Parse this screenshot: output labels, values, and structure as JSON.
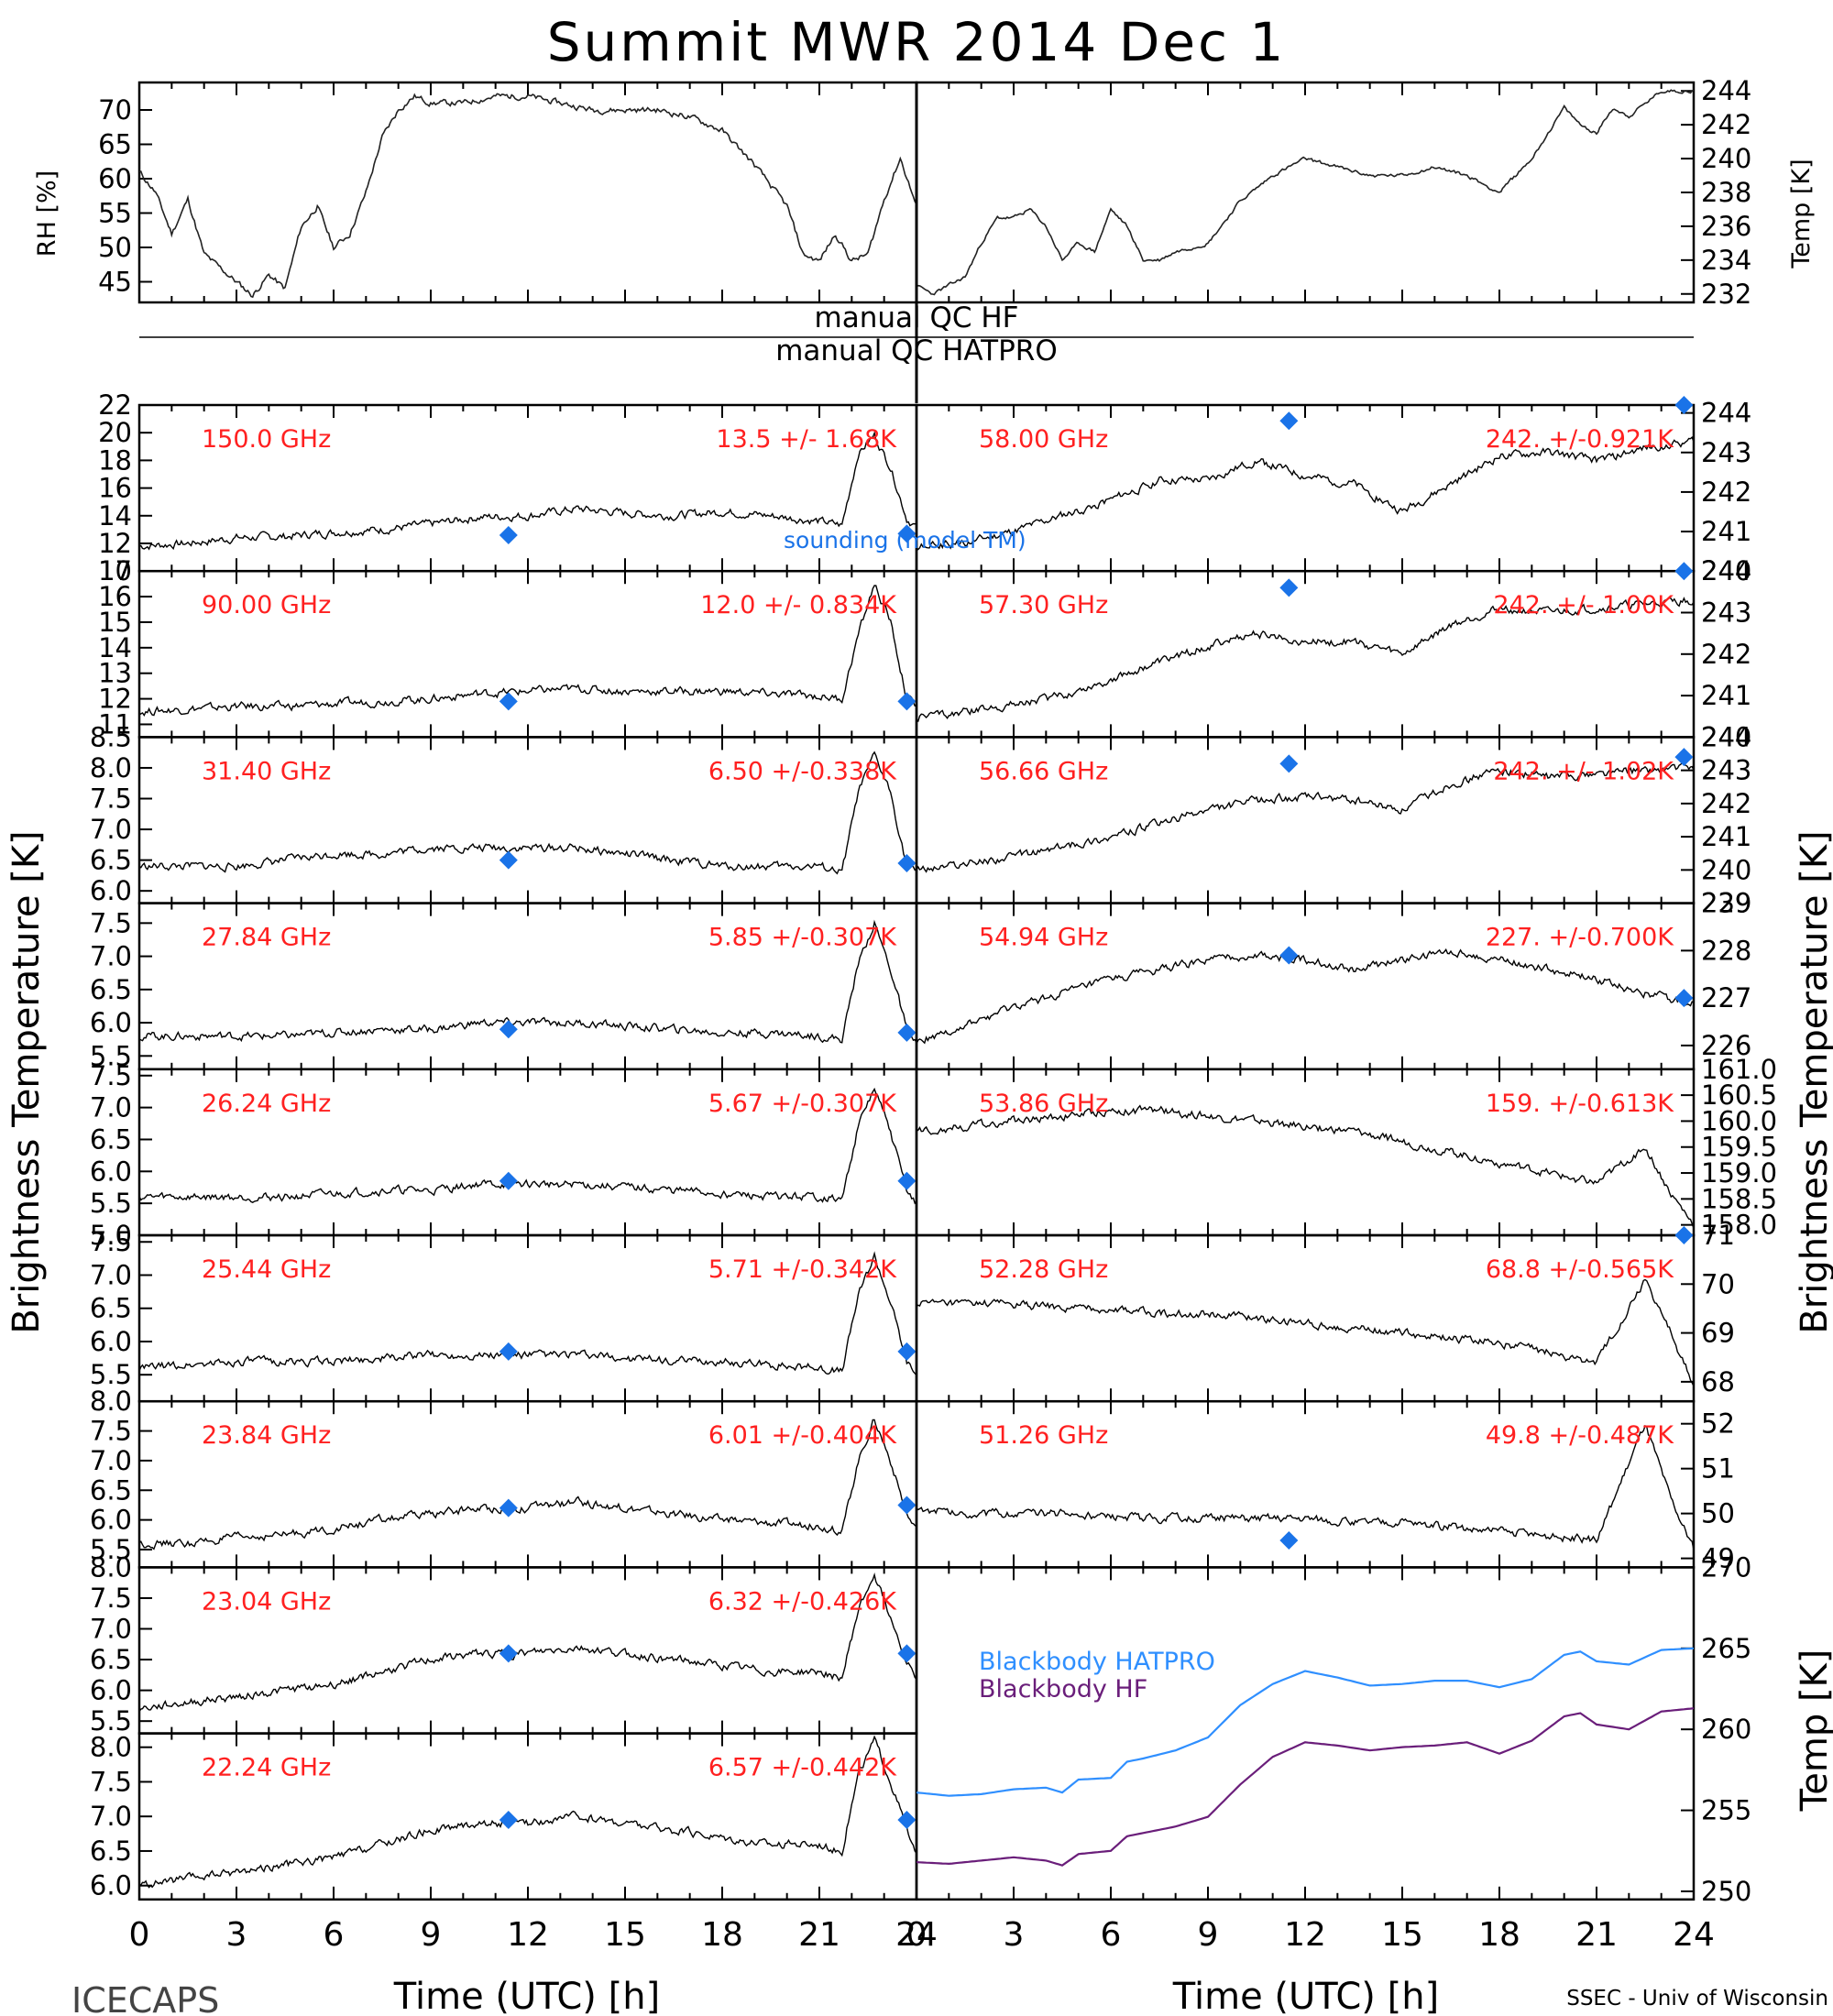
{
  "figure": {
    "title": "Summit MWR 2014 Dec  1",
    "footer_left": "ICECAPS",
    "footer_right": "SSEC - Univ of Wisconsin",
    "left_ylabel": "Brightness Temperature [K]",
    "right_ylabel": "Brightness Temperature [K]",
    "bb_ylabel": "Temp [K]",
    "rh_ylabel": "RH [%]",
    "temp_ylabel": "Temp [K]",
    "xlabel": "Time (UTC) [h]",
    "qc_hf": "manual QC HF",
    "qc_hatpro": "manual QC HATPRO",
    "sounding_label": "sounding (model TM)",
    "legend_hatpro": "Blackbody HATPRO",
    "legend_hf": "Blackbody HF",
    "colors": {
      "channel_label": "#ff2020",
      "sounding": "#1a73e8",
      "hatpro": "#2f8fff",
      "hf": "#6a1e7a",
      "data": "#000000"
    }
  },
  "chart_data": [
    {
      "type": "line",
      "name": "rh",
      "ylabel": "RH [%]",
      "xlim": [
        0,
        24
      ],
      "ylim": [
        42,
        74
      ],
      "yticks": [
        45,
        50,
        55,
        60,
        65,
        70
      ],
      "x": [
        0,
        0.5,
        1,
        1.5,
        2,
        2.5,
        3,
        3.5,
        4,
        4.5,
        5,
        5.5,
        6,
        6.5,
        7,
        7.5,
        8,
        8.5,
        9,
        10,
        11,
        12,
        13,
        14,
        15,
        16,
        17,
        18,
        19,
        20,
        20.5,
        21,
        21.5,
        22,
        22.5,
        23,
        23.5,
        24
      ],
      "y": [
        61,
        58,
        52,
        57,
        49,
        47,
        45,
        43,
        46,
        44,
        53,
        56,
        50,
        52,
        58,
        66,
        70,
        72,
        71,
        71,
        72,
        72,
        71,
        70,
        70,
        70,
        69,
        67,
        62,
        56,
        49,
        48,
        52,
        48,
        49,
        57,
        63,
        56
      ]
    },
    {
      "type": "line",
      "name": "temp",
      "ylabel": "Temp [K]",
      "xlim": [
        0,
        24
      ],
      "ylim": [
        231.5,
        244.5
      ],
      "yticks": [
        232,
        234,
        236,
        238,
        240,
        242,
        244
      ],
      "x": [
        0,
        0.5,
        1,
        1.5,
        2,
        2.5,
        3,
        3.5,
        4,
        4.5,
        5,
        5.5,
        6,
        6.5,
        7,
        7.5,
        8,
        9,
        10,
        11,
        12,
        13,
        14,
        15,
        16,
        17,
        18,
        19,
        20,
        20.5,
        21,
        21.5,
        22,
        23,
        24
      ],
      "y": [
        232.5,
        232,
        232.5,
        233,
        235,
        236.5,
        236.5,
        237,
        236,
        234,
        235,
        234.5,
        237,
        236,
        234,
        234,
        234.5,
        235,
        237.5,
        239,
        240,
        239.5,
        239,
        239,
        239.5,
        239,
        238,
        240,
        243,
        242,
        241.5,
        243,
        242.5,
        244,
        244
      ]
    },
    {
      "type": "line",
      "name": "150.0 GHz",
      "ylim": [
        10,
        22
      ],
      "yticks": [
        10,
        12,
        14,
        16,
        18,
        20,
        22
      ],
      "stat": "13.5 +/-  1.68K",
      "x": [
        0,
        1.5,
        3,
        4.5,
        6,
        7.5,
        9,
        10.5,
        12,
        13.5,
        15,
        16.5,
        18,
        19.5,
        21,
        21.7,
        22.2,
        22.7,
        23.2,
        23.7,
        24
      ],
      "y": [
        11.8,
        12.0,
        12.4,
        12.5,
        12.8,
        13.0,
        13.4,
        13.9,
        14.0,
        14.5,
        14.2,
        14.0,
        14.3,
        14.0,
        13.6,
        13.3,
        18.5,
        19.8,
        17.5,
        13.8,
        13.2
      ],
      "sounding": [
        [
          11.4,
          12.6
        ],
        [
          23.7,
          12.7
        ]
      ]
    },
    {
      "type": "line",
      "name": "90.00 GHz",
      "ylim": [
        10.5,
        17
      ],
      "yticks": [
        11,
        12,
        13,
        14,
        15,
        16,
        17
      ],
      "stat": "12.0 +/- 0.834K",
      "x": [
        0,
        1.5,
        3,
        4.5,
        6,
        7.5,
        9,
        10.5,
        12,
        13.5,
        15,
        16.5,
        18,
        19.5,
        21,
        21.7,
        22.2,
        22.7,
        23.2,
        23.7,
        24
      ],
      "y": [
        11.5,
        11.6,
        11.7,
        11.7,
        11.8,
        11.9,
        12.0,
        12.2,
        12.3,
        12.4,
        12.3,
        12.3,
        12.3,
        12.2,
        12.1,
        12.0,
        14.5,
        16.5,
        15.0,
        12.0,
        11.8
      ],
      "sounding": [
        [
          11.4,
          11.9
        ],
        [
          23.7,
          11.9
        ]
      ]
    },
    {
      "type": "line",
      "name": "31.40 GHz",
      "ylim": [
        5.8,
        8.5
      ],
      "yticks": [
        6.0,
        6.5,
        7.0,
        7.5,
        8.0,
        8.5
      ],
      "stat": "6.50 +/-0.338K",
      "x": [
        0,
        1.5,
        3,
        4.5,
        6,
        7.5,
        9,
        10.5,
        12,
        13.5,
        15,
        16.5,
        18,
        19.5,
        21,
        21.7,
        22.2,
        22.7,
        23.2,
        23.7,
        24
      ],
      "y": [
        6.4,
        6.4,
        6.4,
        6.5,
        6.6,
        6.6,
        6.7,
        6.7,
        6.7,
        6.7,
        6.6,
        6.5,
        6.4,
        6.4,
        6.4,
        6.3,
        7.6,
        8.2,
        7.6,
        6.4,
        6.3
      ],
      "sounding": [
        [
          11.4,
          6.5
        ],
        [
          23.7,
          6.45
        ]
      ]
    },
    {
      "type": "line",
      "name": "27.84 GHz",
      "ylim": [
        5.3,
        7.8
      ],
      "yticks": [
        5.5,
        6.0,
        6.5,
        7.0,
        7.5
      ],
      "stat": "5.85 +/-0.307K",
      "x": [
        0,
        1.5,
        3,
        4.5,
        6,
        7.5,
        9,
        10.5,
        12,
        13.5,
        15,
        16.5,
        18,
        19.5,
        21,
        21.7,
        22.2,
        22.7,
        23.2,
        23.7,
        24
      ],
      "y": [
        5.8,
        5.8,
        5.8,
        5.8,
        5.85,
        5.9,
        5.9,
        6.0,
        6.0,
        6.0,
        5.95,
        5.9,
        5.85,
        5.85,
        5.8,
        5.75,
        6.9,
        7.5,
        6.8,
        5.9,
        5.7
      ],
      "sounding": [
        [
          11.4,
          5.9
        ],
        [
          23.7,
          5.85
        ]
      ]
    },
    {
      "type": "line",
      "name": "26.24 GHz",
      "ylim": [
        5.0,
        7.6
      ],
      "yticks": [
        5.0,
        5.5,
        6.0,
        6.5,
        7.0,
        7.5
      ],
      "stat": "5.67 +/-0.307K",
      "x": [
        0,
        1.5,
        3,
        4.5,
        6,
        7.5,
        9,
        10.5,
        12,
        13.5,
        15,
        16.5,
        18,
        19.5,
        21,
        21.7,
        22.2,
        22.7,
        23.2,
        23.7,
        24
      ],
      "y": [
        5.6,
        5.6,
        5.6,
        5.6,
        5.65,
        5.7,
        5.7,
        5.8,
        5.8,
        5.8,
        5.75,
        5.7,
        5.65,
        5.6,
        5.6,
        5.55,
        6.7,
        7.3,
        6.6,
        5.7,
        5.5
      ],
      "sounding": [
        [
          11.4,
          5.85
        ],
        [
          23.7,
          5.85
        ]
      ]
    },
    {
      "type": "line",
      "name": "25.44 GHz",
      "ylim": [
        5.1,
        7.6
      ],
      "yticks": [
        5.5,
        6.0,
        6.5,
        7.0,
        7.5
      ],
      "stat": "5.71 +/-0.342K",
      "x": [
        0,
        1.5,
        3,
        4.5,
        6,
        7.5,
        9,
        10.5,
        12,
        13.5,
        15,
        16.5,
        18,
        19.5,
        21,
        21.7,
        22.2,
        22.7,
        23.2,
        23.7,
        24
      ],
      "y": [
        5.6,
        5.65,
        5.7,
        5.7,
        5.7,
        5.75,
        5.8,
        5.8,
        5.8,
        5.8,
        5.75,
        5.7,
        5.7,
        5.65,
        5.6,
        5.55,
        6.7,
        7.3,
        6.6,
        5.7,
        5.5
      ],
      "sounding": [
        [
          11.4,
          5.85
        ],
        [
          23.7,
          5.85
        ]
      ]
    },
    {
      "type": "line",
      "name": "23.84 GHz",
      "ylim": [
        5.2,
        8.0
      ],
      "yticks": [
        5.5,
        6.0,
        6.5,
        7.0,
        7.5,
        8.0
      ],
      "stat": "6.01 +/-0.404K",
      "x": [
        0,
        1.5,
        3,
        4.5,
        6,
        7.5,
        9,
        10.5,
        12,
        13.5,
        15,
        16.5,
        18,
        19.5,
        21,
        21.7,
        22.2,
        22.7,
        23.2,
        23.7,
        24
      ],
      "y": [
        5.6,
        5.6,
        5.7,
        5.75,
        5.85,
        6.0,
        6.1,
        6.2,
        6.2,
        6.3,
        6.2,
        6.1,
        6.0,
        5.95,
        5.9,
        5.8,
        7.0,
        7.7,
        7.0,
        6.1,
        5.8
      ],
      "sounding": [
        [
          11.4,
          6.2
        ],
        [
          23.7,
          6.25
        ]
      ]
    },
    {
      "type": "line",
      "name": "23.04 GHz",
      "ylim": [
        5.3,
        8.0
      ],
      "yticks": [
        5.5,
        6.0,
        6.5,
        7.0,
        7.5,
        8.0
      ],
      "stat": "6.32 +/-0.426K",
      "x": [
        0,
        1.5,
        3,
        4.5,
        6,
        7.5,
        9,
        10.5,
        12,
        13.5,
        15,
        16.5,
        18,
        19.5,
        21,
        21.7,
        22.2,
        22.7,
        23.2,
        23.7,
        24
      ],
      "y": [
        5.7,
        5.8,
        5.9,
        6.0,
        6.1,
        6.3,
        6.5,
        6.6,
        6.6,
        6.7,
        6.6,
        6.5,
        6.4,
        6.3,
        6.3,
        6.2,
        7.3,
        7.9,
        7.2,
        6.5,
        6.2
      ],
      "sounding": [
        [
          11.4,
          6.6
        ],
        [
          23.7,
          6.6
        ]
      ]
    },
    {
      "type": "line",
      "name": "22.24 GHz",
      "ylim": [
        5.8,
        8.2
      ],
      "yticks": [
        6.0,
        6.5,
        7.0,
        7.5,
        8.0
      ],
      "stat": "6.57 +/-0.442K",
      "x": [
        0,
        1.5,
        3,
        4.5,
        6,
        7.5,
        9,
        10.5,
        12,
        13.5,
        15,
        16.5,
        18,
        19.5,
        21,
        21.7,
        22.2,
        22.7,
        23.2,
        23.7,
        24
      ],
      "y": [
        6.0,
        6.1,
        6.2,
        6.3,
        6.4,
        6.6,
        6.8,
        6.9,
        6.9,
        7.0,
        6.9,
        6.8,
        6.7,
        6.6,
        6.6,
        6.5,
        7.6,
        8.1,
        7.5,
        6.8,
        6.4
      ],
      "sounding": [
        [
          11.4,
          6.95
        ],
        [
          23.7,
          6.95
        ]
      ]
    },
    {
      "type": "line",
      "name": "58.00 GHz",
      "ylim": [
        240,
        244.2
      ],
      "yticks": [
        240,
        241,
        242,
        243,
        244
      ],
      "stat": "242. +/-0.921K",
      "x": [
        0,
        1.5,
        3,
        4.5,
        6,
        7.5,
        9,
        10.5,
        12,
        13.5,
        15,
        16.5,
        18,
        19.5,
        21,
        22.5,
        24
      ],
      "y": [
        240.6,
        240.7,
        241.0,
        241.4,
        241.8,
        242.3,
        242.3,
        242.8,
        242.4,
        242.2,
        241.5,
        242.2,
        242.9,
        243.0,
        242.8,
        243.1,
        243.3
      ],
      "sounding": [
        [
          11.5,
          243.8
        ],
        [
          23.7,
          244.2
        ]
      ]
    },
    {
      "type": "line",
      "name": "57.30 GHz",
      "ylim": [
        240,
        244
      ],
      "yticks": [
        240,
        241,
        242,
        243,
        244
      ],
      "stat": "242. +/- 1.00K",
      "x": [
        0,
        1.5,
        3,
        4.5,
        6,
        7.5,
        9,
        10.5,
        12,
        13.5,
        15,
        16.5,
        18,
        19.5,
        21,
        22.5,
        24
      ],
      "y": [
        240.5,
        240.6,
        240.8,
        241.0,
        241.4,
        241.8,
        242.2,
        242.5,
        242.3,
        242.3,
        242.0,
        242.7,
        243.1,
        243.0,
        243.1,
        243.2,
        243.3
      ],
      "sounding": [
        [
          11.5,
          243.6
        ],
        [
          23.7,
          244.0
        ]
      ]
    },
    {
      "type": "line",
      "name": "56.66 GHz",
      "ylim": [
        239,
        244
      ],
      "yticks": [
        239,
        240,
        241,
        242,
        243,
        244
      ],
      "stat": "242. +/- 1.02K",
      "x": [
        0,
        1.5,
        3,
        4.5,
        6,
        7.5,
        9,
        10.5,
        12,
        13.5,
        15,
        16.5,
        18,
        19.5,
        21,
        22.5,
        24
      ],
      "y": [
        240.0,
        240.2,
        240.4,
        240.7,
        241.0,
        241.4,
        241.8,
        242.1,
        242.2,
        242.1,
        241.8,
        242.6,
        243.0,
        242.8,
        242.9,
        243.0,
        243.1
      ],
      "sounding": [
        [
          11.5,
          243.2
        ],
        [
          23.7,
          243.4
        ]
      ]
    },
    {
      "type": "line",
      "name": "54.94 GHz",
      "ylim": [
        225.5,
        229
      ],
      "yticks": [
        226,
        227,
        228,
        229
      ],
      "stat": "227. +/-0.700K",
      "x": [
        0,
        1.5,
        3,
        4.5,
        6,
        7.5,
        9,
        10.5,
        12,
        13.5,
        15,
        16.5,
        18,
        19.5,
        21,
        22.5,
        24
      ],
      "y": [
        226.1,
        226.4,
        226.8,
        227.1,
        227.4,
        227.6,
        227.8,
        227.9,
        227.8,
        227.6,
        227.8,
        228.0,
        227.8,
        227.6,
        227.4,
        227.1,
        226.9
      ],
      "sounding": [
        [
          11.5,
          227.9
        ],
        [
          23.7,
          227.0
        ]
      ]
    },
    {
      "type": "line",
      "name": "53.86 GHz",
      "ylim": [
        157.8,
        161
      ],
      "yticks": [
        158.0,
        158.5,
        159.0,
        159.5,
        160.0,
        160.5,
        161.0
      ],
      "stat": "159. +/-0.613K",
      "x": [
        0,
        1.5,
        3,
        4.5,
        6,
        7.5,
        9,
        10.5,
        12,
        13.5,
        15,
        16.5,
        18,
        19.5,
        21,
        22.5,
        23.3,
        24
      ],
      "y": [
        159.8,
        159.9,
        160.0,
        160.1,
        160.2,
        160.2,
        160.1,
        160.0,
        159.9,
        159.8,
        159.6,
        159.4,
        159.2,
        159.0,
        158.8,
        159.5,
        158.6,
        158.0
      ],
      "sounding": []
    },
    {
      "type": "line",
      "name": "52.28 GHz",
      "ylim": [
        67.6,
        71
      ],
      "yticks": [
        68,
        69,
        70,
        71
      ],
      "stat": "68.8 +/-0.565K",
      "x": [
        0,
        1.5,
        3,
        4.5,
        6,
        7.5,
        9,
        10.5,
        12,
        13.5,
        15,
        16.5,
        18,
        19.5,
        21,
        22.5,
        23.3,
        24
      ],
      "y": [
        69.6,
        69.6,
        69.6,
        69.5,
        69.5,
        69.4,
        69.4,
        69.3,
        69.2,
        69.1,
        69.0,
        68.9,
        68.8,
        68.6,
        68.4,
        70.1,
        69.0,
        67.9
      ],
      "sounding": [
        [
          23.7,
          71.0
        ]
      ]
    },
    {
      "type": "line",
      "name": "51.26 GHz",
      "ylim": [
        48.8,
        52.5
      ],
      "yticks": [
        49,
        50,
        51,
        52
      ],
      "stat": "49.8 +/-0.487K",
      "x": [
        0,
        1.5,
        3,
        4.5,
        6,
        7.5,
        9,
        10.5,
        12,
        13.5,
        15,
        16.5,
        18,
        19.5,
        21,
        22.5,
        23.3,
        24
      ],
      "y": [
        50.1,
        50.0,
        50.0,
        50.0,
        49.9,
        49.9,
        49.9,
        49.9,
        49.9,
        49.8,
        49.8,
        49.7,
        49.6,
        49.5,
        49.4,
        52.0,
        50.3,
        49.2
      ],
      "sounding": [
        [
          11.5,
          49.4
        ]
      ]
    },
    {
      "type": "line",
      "name": "blackbody",
      "ylabel": "Temp [K]",
      "xlabel": "Time (UTC) [h]",
      "ylim": [
        249.5,
        270
      ],
      "yticks": [
        250,
        255,
        260,
        265,
        270
      ],
      "x": [
        0,
        1,
        2,
        3,
        4,
        4.5,
        5,
        6,
        6.5,
        7,
        8,
        9,
        10,
        11,
        12,
        13,
        14,
        15,
        16,
        17,
        18,
        19,
        20,
        20.5,
        21,
        22,
        23,
        24
      ],
      "series": [
        {
          "name": "Blackbody HATPRO",
          "values": [
            256.1,
            255.9,
            256.0,
            256.3,
            256.4,
            256.1,
            256.9,
            257.0,
            258.0,
            258.2,
            258.7,
            259.5,
            261.5,
            262.8,
            263.6,
            263.2,
            262.7,
            262.8,
            263.0,
            263.0,
            262.6,
            263.1,
            264.6,
            264.8,
            264.2,
            264.0,
            264.9,
            265.0
          ]
        },
        {
          "name": "Blackbody HF",
          "values": [
            251.8,
            251.7,
            251.9,
            252.1,
            251.9,
            251.6,
            252.3,
            252.5,
            253.4,
            253.6,
            254.0,
            254.6,
            256.6,
            258.3,
            259.2,
            259.0,
            258.7,
            258.9,
            259.0,
            259.2,
            258.5,
            259.3,
            260.8,
            261.0,
            260.3,
            260.0,
            261.1,
            261.3
          ]
        }
      ]
    }
  ]
}
